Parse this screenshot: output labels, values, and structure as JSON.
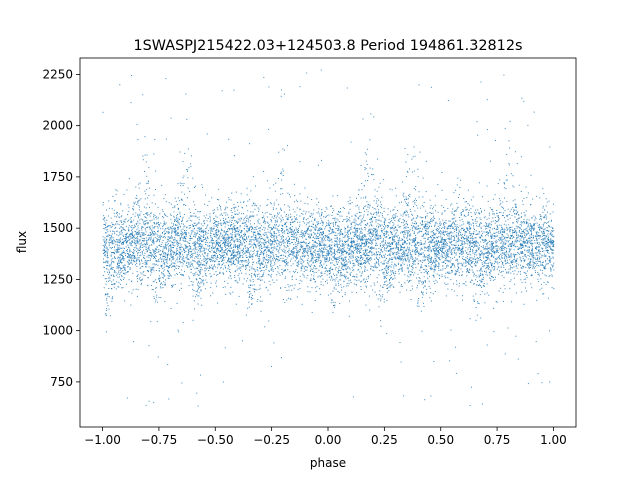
{
  "chart_data": {
    "type": "scatter",
    "title": "1SWASPJ215422.03+124503.8 Period 194861.32812s",
    "xlabel": "phase",
    "ylabel": "flux",
    "xlim": [
      -1.1,
      1.1
    ],
    "ylim": [
      530,
      2330
    ],
    "grid": false,
    "x_ticks": [
      -1.0,
      -0.75,
      -0.5,
      -0.25,
      0.0,
      0.25,
      0.5,
      0.75,
      1.0
    ],
    "x_tick_labels": [
      "−1.00",
      "−0.75",
      "−0.50",
      "−0.25",
      "0.00",
      "0.25",
      "0.50",
      "0.75",
      "1.00"
    ],
    "y_ticks": [
      750,
      1000,
      1250,
      1500,
      1750,
      2000,
      2250
    ],
    "y_tick_labels": [
      "750",
      "1000",
      "1250",
      "1500",
      "1750",
      "2000",
      "2250"
    ],
    "series_color": "#1f77b4",
    "x_range": [
      -1.0,
      1.0
    ],
    "period_phase": 1.0,
    "baseline_flux": 1420,
    "core_spread": 95,
    "dip_phases": [
      -0.93,
      -0.72,
      -0.55,
      -0.3,
      0.07,
      0.28,
      0.45,
      0.7
    ],
    "dip_depth": 1150,
    "peak_phases": [
      -0.82,
      -0.63,
      -0.2,
      0.18,
      0.37,
      0.8
    ],
    "peak_flux": 1760,
    "outlier_range": [
      620,
      2290
    ]
  }
}
